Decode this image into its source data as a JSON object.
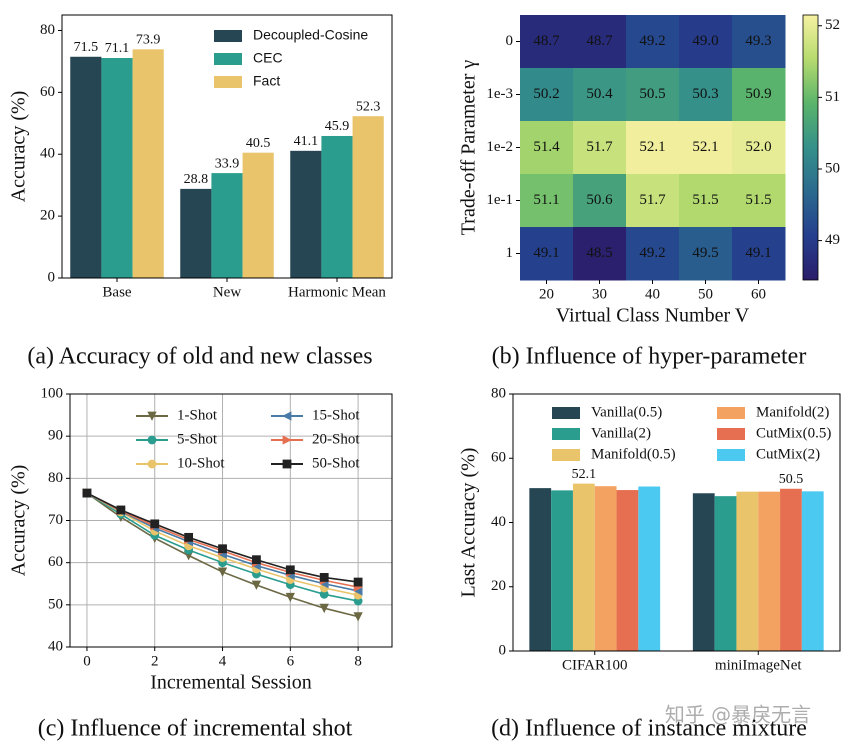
{
  "chart_data": [
    {
      "type": "bar",
      "ylabel": "Accuracy (%)",
      "categories": [
        "Base",
        "New",
        "Harmonic Mean"
      ],
      "series": [
        {
          "name": "Decoupled-Cosine",
          "color": "#264653",
          "values": [
            71.5,
            28.8,
            41.1
          ]
        },
        {
          "name": "CEC",
          "color": "#2a9d8f",
          "values": [
            71.1,
            33.9,
            45.9
          ]
        },
        {
          "name": "Fact",
          "color": "#e9c46a",
          "values": [
            73.9,
            40.5,
            52.3
          ]
        }
      ],
      "data_labels": true,
      "ylim": [
        0,
        85
      ],
      "yticks": [
        0,
        20,
        40,
        60,
        80
      ],
      "legend": "upper right",
      "caption": "(a) Accuracy of old and new classes"
    },
    {
      "type": "heatmap",
      "xlabel": "Virtual Class Number V",
      "ylabel": "Trade-off Parameter γ",
      "x": [
        20,
        30,
        40,
        50,
        60
      ],
      "y": [
        "0",
        "1e-3",
        "1e-2",
        "1e-1",
        "1"
      ],
      "z": [
        [
          48.7,
          48.7,
          49.2,
          49.0,
          49.3
        ],
        [
          50.2,
          50.4,
          50.5,
          50.3,
          50.9
        ],
        [
          51.4,
          51.7,
          52.1,
          52.1,
          52.0
        ],
        [
          51.1,
          50.6,
          51.7,
          51.5,
          51.5
        ],
        [
          49.1,
          48.5,
          49.2,
          49.5,
          49.1
        ]
      ],
      "value_labels": [
        [
          "48.7",
          "48.7",
          "49.2",
          "49.0",
          "49.3"
        ],
        [
          "50.2",
          "50.4",
          "50.5",
          "50.3",
          "50.9"
        ],
        [
          "51.4",
          "51.7",
          "52.1",
          "52.1",
          "52.0"
        ],
        [
          "51.1",
          "50.6",
          "51.7",
          "51.5",
          "51.5"
        ],
        [
          "49.1",
          "48.5",
          "49.2",
          "49.5",
          "49.1"
        ]
      ],
      "colormap": [
        "#2a1d6a",
        "#253f8e",
        "#2b6a8e",
        "#35908a",
        "#5ab46b",
        "#b6db6e",
        "#f6f1a2"
      ],
      "zlim": [
        48.45,
        52.15
      ],
      "zticks": [
        49,
        50,
        51,
        52
      ],
      "caption": "(b) Influence of hyper-parameter"
    },
    {
      "type": "line",
      "xlabel": "Incremental Session",
      "ylabel": "Accuracy (%)",
      "x": [
        0,
        1,
        2,
        3,
        4,
        5,
        6,
        7,
        8
      ],
      "series": [
        {
          "name": "1-Shot",
          "color": "#6b6843",
          "marker": "v",
          "values": [
            76.5,
            70.8,
            65.8,
            61.7,
            57.8,
            54.7,
            51.8,
            49.2,
            47.2
          ]
        },
        {
          "name": "5-Shot",
          "color": "#2a9d8f",
          "marker": "o",
          "values": [
            76.5,
            71.5,
            66.5,
            63.0,
            60.0,
            57.3,
            54.8,
            52.5,
            50.9
          ]
        },
        {
          "name": "10-Shot",
          "color": "#e9c46a",
          "marker": "o",
          "values": [
            76.5,
            72.0,
            67.5,
            64.0,
            61.2,
            58.5,
            56.0,
            54.0,
            52.3
          ]
        },
        {
          "name": "15-Shot",
          "color": "#4a7ba6",
          "marker": "<",
          "values": [
            76.5,
            72.2,
            68.2,
            65.0,
            62.0,
            59.3,
            57.0,
            55.0,
            53.3
          ]
        },
        {
          "name": "20-Shot",
          "color": "#e76f51",
          "marker": ">",
          "values": [
            76.5,
            72.3,
            68.7,
            65.5,
            62.8,
            60.0,
            57.7,
            55.8,
            54.2
          ]
        },
        {
          "name": "50-Shot",
          "color": "#222222",
          "marker": "s",
          "values": [
            76.5,
            72.5,
            69.2,
            66.0,
            63.3,
            60.7,
            58.3,
            56.5,
            55.4
          ]
        }
      ],
      "xlim": [
        -0.5,
        9
      ],
      "xticks": [
        0,
        2,
        4,
        6,
        8
      ],
      "ylim": [
        40,
        100
      ],
      "yticks": [
        40,
        50,
        60,
        70,
        80,
        90,
        100
      ],
      "grid": true,
      "legend": "upper right",
      "legend_columns": 2,
      "caption": "(c) Influence of incremental shot"
    },
    {
      "type": "bar",
      "ylabel": "Last Accuracy (%)",
      "categories": [
        "CIFAR100",
        "miniImageNet"
      ],
      "series": [
        {
          "name": "Vanilla(0.5)",
          "color": "#264653",
          "values": [
            50.7,
            49.1
          ]
        },
        {
          "name": "Vanilla(2)",
          "color": "#2a9d8f",
          "values": [
            50.0,
            48.2
          ]
        },
        {
          "name": "Manifold(0.5)",
          "color": "#e9c46a",
          "values": [
            52.1,
            49.6
          ],
          "value_labels": [
            "52.1",
            null
          ]
        },
        {
          "name": "Manifold(2)",
          "color": "#f4a261",
          "values": [
            51.3,
            49.6
          ]
        },
        {
          "name": "CutMix(0.5)",
          "color": "#e76f51",
          "values": [
            50.1,
            50.5
          ],
          "value_labels": [
            null,
            "50.5"
          ]
        },
        {
          "name": "CutMix(2)",
          "color": "#4cc9f0",
          "values": [
            51.2,
            49.7
          ]
        }
      ],
      "ylim": [
        0,
        80
      ],
      "yticks": [
        0,
        20,
        40,
        60,
        80
      ],
      "legend": "upper center",
      "legend_columns": 2,
      "caption": "(d) Influence of instance mixture"
    }
  ],
  "watermark": "知乎 @暴戾无言"
}
